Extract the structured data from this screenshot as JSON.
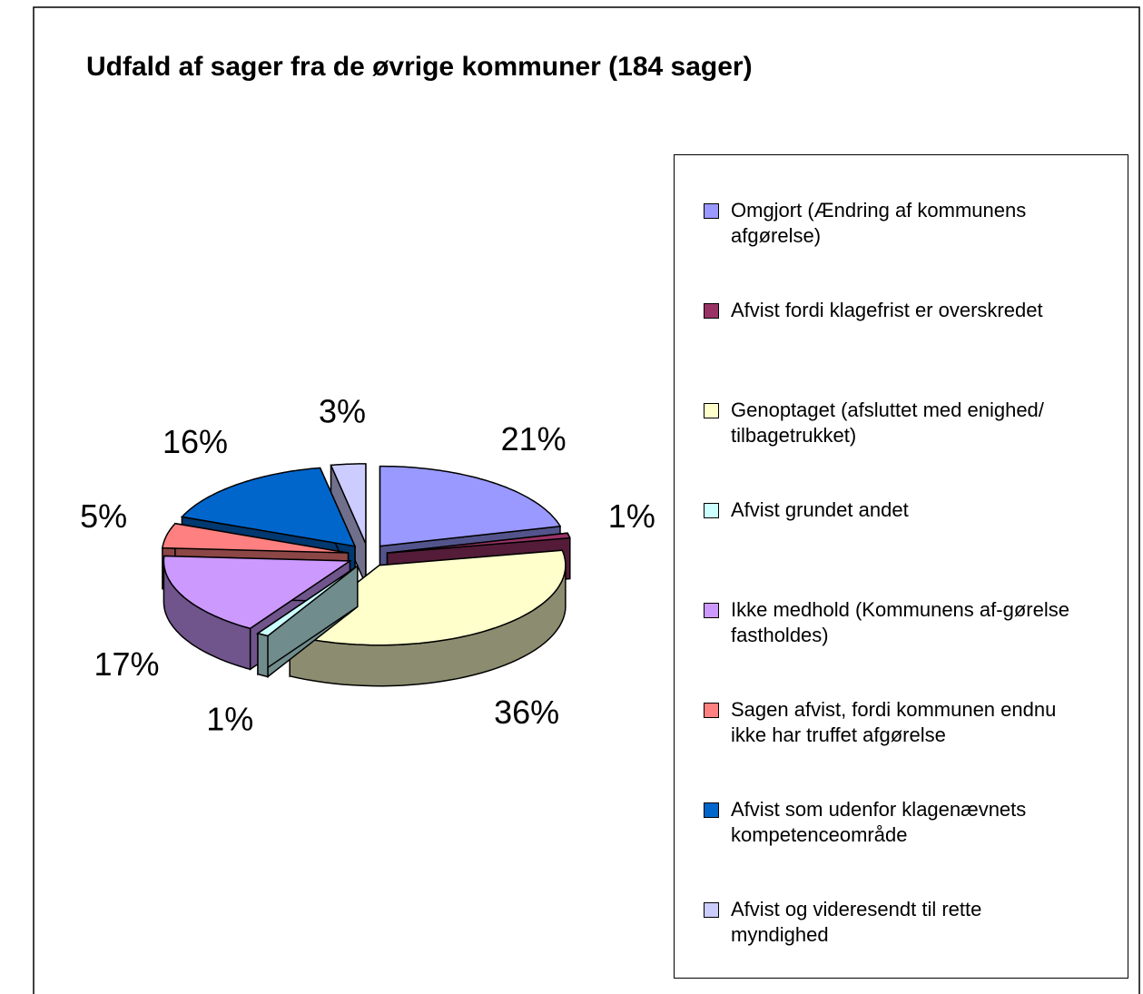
{
  "chart_data": {
    "type": "pie",
    "title": "Udfald af sager fra de øvrige kommuner (184 sager)",
    "categories": [
      "Omgjort (Ændring af kommunens afgørelse)",
      "Afvist fordi klagefrist er overskredet",
      "Genoptaget (afsluttet med enighed/ tilbagetrukket)",
      "Afvist grundet andet",
      "Ikke medhold (Kommunens af-gørelse fastholdes)",
      "Sagen afvist, fordi kommunen endnu ikke har truffet afgørelse",
      "Afvist som udenfor klagenævnets kompetenceområde",
      "Afvist og videresendt til rette myndighed"
    ],
    "values": [
      21,
      1,
      36,
      1,
      17,
      5,
      16,
      3
    ],
    "value_labels": [
      "21%",
      "1%",
      "36%",
      "1%",
      "17%",
      "5%",
      "16%",
      "3%"
    ],
    "colors": [
      "#9999ff",
      "#993366",
      "#ffffcc",
      "#ccffff",
      "#cc99ff",
      "#ff8080",
      "#0066cc",
      "#ccccff"
    ],
    "legend": "right"
  }
}
